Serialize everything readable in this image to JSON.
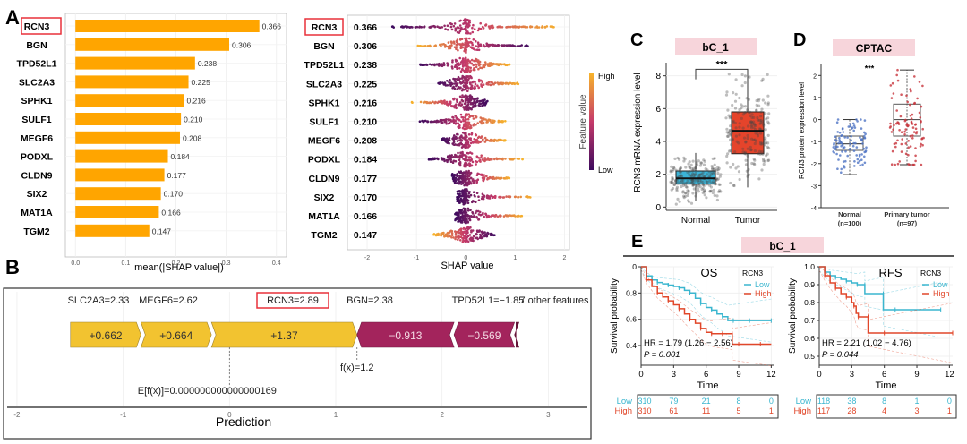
{
  "panel_labels": {
    "A": "A",
    "B": "B",
    "C": "C",
    "D": "D",
    "E": "E"
  },
  "colors": {
    "bar_orange": "#FFA500",
    "highlight_red": "#E8303A",
    "positive_force": "#F2C330",
    "negative_force": "#A3245C",
    "normal_blue": "#3BB3D6",
    "tumor_red": "#E5442B",
    "cptac_normal": "#4F74C4",
    "cptac_tumor": "#C8343C",
    "km_low": "#3AB6CF",
    "km_high": "#E1472A",
    "header_pink": "#F7D5DB",
    "colorbar_low": "#3D0A5E",
    "colorbar_mid": "#C53A6A",
    "colorbar_high": "#F7B32B"
  },
  "chart_data": [
    {
      "id": "A-bar",
      "type": "bar",
      "orientation": "horizontal",
      "categories": [
        "RCN3",
        "BGN",
        "TPD52L1",
        "SLC2A3",
        "SPHK1",
        "SULF1",
        "MEGF6",
        "PODXL",
        "CLDN9",
        "SIX2",
        "MAT1A",
        "TGM2"
      ],
      "values": [
        0.366,
        0.306,
        0.238,
        0.225,
        0.216,
        0.21,
        0.208,
        0.184,
        0.177,
        0.17,
        0.166,
        0.147
      ],
      "value_labels": [
        "0.366",
        "0.306",
        "0.238",
        "0.225",
        "0.216",
        "0.210",
        "0.208",
        "0.184",
        "0.177",
        "0.170",
        "0.166",
        "0.147"
      ],
      "highlighted": "RCN3",
      "xlabel": "mean(|SHAP value|)",
      "xlim": [
        -0.02,
        0.42
      ],
      "xticks": [
        0.0,
        0.1,
        0.2,
        0.3,
        0.4
      ],
      "xtick_labels": [
        "0.0",
        "0.1",
        "0.2",
        "0.3",
        "0.4"
      ],
      "grid": true
    },
    {
      "id": "A-beeswarm",
      "type": "scatter",
      "subtype": "beeswarm",
      "categories": [
        "RCN3",
        "BGN",
        "TPD52L1",
        "SLC2A3",
        "SPHK1",
        "SULF1",
        "MEGF6",
        "PODXL",
        "CLDN9",
        "SIX2",
        "MAT1A",
        "TGM2"
      ],
      "mean_abs_labels": [
        "0.366",
        "0.306",
        "0.238",
        "0.225",
        "0.216",
        "0.210",
        "0.208",
        "0.184",
        "0.177",
        "0.170",
        "0.166",
        "0.147"
      ],
      "highlighted": "RCN3",
      "shap_range": [
        [
          -1.5,
          1.9
        ],
        [
          -1.0,
          1.3
        ],
        [
          -0.95,
          0.9
        ],
        [
          -0.6,
          1.1
        ],
        [
          -1.1,
          0.45
        ],
        [
          -0.95,
          0.8
        ],
        [
          -0.5,
          0.8
        ],
        [
          -0.75,
          1.15
        ],
        [
          -0.28,
          0.9
        ],
        [
          -0.18,
          1.35
        ],
        [
          -0.22,
          1.15
        ],
        [
          -0.65,
          0.6
        ]
      ],
      "low_value_side": [
        "left",
        "right",
        "left",
        "left",
        "right",
        "left",
        "left",
        "left",
        "left",
        "left",
        "left",
        "right"
      ],
      "xlabel": "SHAP value",
      "xlim": [
        -2.4,
        2.1
      ],
      "xticks": [
        -2,
        -1,
        0,
        1,
        2
      ],
      "xtick_labels": [
        "-2",
        "-1",
        "0",
        "1",
        "2"
      ],
      "colorbar": {
        "title": "Feature value",
        "high_label": "High",
        "low_label": "Low"
      }
    },
    {
      "id": "B-force",
      "type": "bar",
      "subtype": "force-plot",
      "features": [
        {
          "name": "SLC2A3=2.33",
          "contribution": 0.662,
          "label": "+0.662"
        },
        {
          "name": "MEGF6=2.62",
          "contribution": 0.664,
          "label": "+0.664"
        },
        {
          "name": "RCN3=2.89",
          "contribution": 1.37,
          "label": "+1.37",
          "highlighted": true
        },
        {
          "name": "BGN=2.38",
          "contribution": -0.913,
          "label": "−0.913"
        },
        {
          "name": "TPD52L1=−1.85",
          "contribution": -0.569,
          "label": "−0.569"
        },
        {
          "name": "7 other features",
          "contribution": -0.014,
          "label": ""
        }
      ],
      "base_value_label": "E[f(x)]=0.000000000000000169",
      "base_value": 0.0,
      "fx_label": "f(x)=1.2",
      "fx": 1.2,
      "xlabel": "Prediction",
      "xlim": [
        -2.05,
        3.3
      ],
      "xticks": [
        -2,
        -1,
        0,
        1,
        2,
        3
      ],
      "xtick_labels": [
        "-2",
        "-1",
        "0",
        "1",
        "2",
        "3"
      ]
    },
    {
      "id": "C-box",
      "type": "scatter",
      "subtype": "boxplot",
      "title": "bC_1",
      "categories": [
        "Normal",
        "Tumor"
      ],
      "ylabel": "RCN3 mRNA expression level",
      "ylim": [
        -0.2,
        8.8
      ],
      "yticks": [
        0,
        2,
        4,
        6,
        8
      ],
      "ytick_labels": [
        "0",
        "2",
        "4",
        "6",
        "8"
      ],
      "significance": "***",
      "boxes": [
        {
          "name": "Normal",
          "q1": 1.4,
          "median": 1.75,
          "q3": 2.2,
          "whisker_low": 0.4,
          "whisker_high": 3.3
        },
        {
          "name": "Tumor",
          "q1": 3.25,
          "median": 4.65,
          "q3": 5.8,
          "whisker_low": 1.2,
          "whisker_high": 8.1
        }
      ]
    },
    {
      "id": "D-box",
      "type": "scatter",
      "subtype": "boxplot",
      "title": "CPTAC",
      "categories": [
        "Normal\n(n=100)",
        "Primary tumor\n(n=97)"
      ],
      "category_lines": [
        [
          "Normal",
          "(n=100)"
        ],
        [
          "Primary tumor",
          "(n=97)"
        ]
      ],
      "ylabel": "RCN3 protein expression level",
      "ylim": [
        -4,
        2.5
      ],
      "yticks": [
        -4,
        -3,
        -2,
        -1,
        0,
        1,
        2
      ],
      "ytick_labels": [
        "-4",
        "-3",
        "-2",
        "-1",
        "0",
        "1",
        "2"
      ],
      "significance": "***",
      "boxes": [
        {
          "name": "Normal",
          "q1": -1.4,
          "median": -1.1,
          "q3": -0.75,
          "whisker_low": -2.5,
          "whisker_high": 0.0
        },
        {
          "name": "Primary tumor",
          "q1": -0.75,
          "median": 0.0,
          "q3": 0.7,
          "whisker_low": -2.05,
          "whisker_high": 2.25
        }
      ]
    },
    {
      "id": "E-OS",
      "type": "line",
      "subtype": "kaplan-meier",
      "group_title": "bC_1",
      "title": "OS",
      "xlabel": "Time",
      "ylabel": "Survival probability",
      "xlim": [
        0,
        12.3
      ],
      "ylim": [
        0.25,
        1.0
      ],
      "xticks": [
        0,
        3,
        6,
        9,
        12
      ],
      "yticks": [
        0.4,
        0.6,
        0.8,
        1.0
      ],
      "ytick_labels": [
        "0.4",
        "0.6",
        "0.8",
        ".0"
      ],
      "legend": {
        "title": "RCN3",
        "entries": [
          "Low",
          "High"
        ],
        "position": "top-right"
      },
      "annotation": [
        "HR = 1.79 (1.26 − 2.56)",
        "P = 0.001"
      ],
      "series": [
        {
          "name": "Low",
          "x": [
            0,
            0.5,
            1,
            1.5,
            2,
            2.5,
            3,
            3.5,
            4,
            4.5,
            5,
            5.5,
            6,
            6.5,
            7,
            7.5,
            8,
            8.5,
            9,
            10,
            11,
            12
          ],
          "y": [
            1.0,
            0.93,
            0.9,
            0.88,
            0.87,
            0.86,
            0.85,
            0.84,
            0.82,
            0.8,
            0.76,
            0.72,
            0.69,
            0.67,
            0.64,
            0.62,
            0.59,
            0.59,
            0.59,
            0.59,
            0.59,
            0.59
          ]
        },
        {
          "name": "High",
          "x": [
            0,
            0.5,
            1,
            1.5,
            2,
            2.5,
            3,
            3.5,
            4,
            4.5,
            5,
            5.5,
            6,
            6.5,
            7,
            7.5,
            8,
            8.4,
            8.4,
            9,
            10,
            11,
            12
          ],
          "y": [
            1.0,
            0.9,
            0.85,
            0.8,
            0.77,
            0.74,
            0.71,
            0.68,
            0.64,
            0.6,
            0.57,
            0.53,
            0.5,
            0.49,
            0.49,
            0.49,
            0.49,
            0.49,
            0.41,
            0.41,
            0.41,
            0.41,
            0.41
          ]
        }
      ],
      "risk_table": {
        "rows": [
          {
            "name": "Low",
            "values": [
              "310",
              "79",
              "21",
              "8",
              "0"
            ]
          },
          {
            "name": "High",
            "values": [
              "310",
              "61",
              "11",
              "5",
              "1"
            ]
          }
        ]
      }
    },
    {
      "id": "E-RFS",
      "type": "line",
      "subtype": "kaplan-meier",
      "group_title": "bC_1",
      "title": "RFS",
      "xlabel": "Time",
      "ylabel": "Survival probability",
      "xlim": [
        0,
        12.3
      ],
      "ylim": [
        0.45,
        1.0
      ],
      "xticks": [
        0,
        3,
        6,
        9,
        12
      ],
      "yticks": [
        0.5,
        0.6,
        0.7,
        0.8,
        0.9,
        1.0
      ],
      "ytick_labels": [
        "0.5",
        "0.6",
        "0.7",
        "0.8",
        "0.9",
        "1.0"
      ],
      "legend": {
        "title": "RCN3",
        "entries": [
          "Low",
          "High"
        ],
        "position": "top-right"
      },
      "annotation": [
        "HR = 2.21 (1.02 − 4.76)",
        "P = 0.044"
      ],
      "series": [
        {
          "name": "Low",
          "x": [
            0,
            0.5,
            1,
            1.5,
            2,
            2.5,
            3,
            3.5,
            4,
            4.2,
            4.2,
            5.9,
            5.9,
            7,
            9,
            11.2
          ],
          "y": [
            1.0,
            0.97,
            0.95,
            0.94,
            0.93,
            0.92,
            0.91,
            0.9,
            0.9,
            0.9,
            0.85,
            0.85,
            0.76,
            0.76,
            0.76,
            0.76
          ]
        },
        {
          "name": "High",
          "x": [
            0,
            0.5,
            1,
            1.5,
            2,
            2.5,
            3,
            3.2,
            3.4,
            3.6,
            4,
            4.5,
            4.5,
            6,
            9,
            12.3
          ],
          "y": [
            1.0,
            0.95,
            0.91,
            0.88,
            0.85,
            0.83,
            0.8,
            0.78,
            0.74,
            0.72,
            0.72,
            0.72,
            0.63,
            0.63,
            0.63,
            0.63
          ]
        }
      ],
      "risk_table": {
        "rows": [
          {
            "name": "Low",
            "values": [
              "118",
              "38",
              "8",
              "1",
              "0"
            ]
          },
          {
            "name": "High",
            "values": [
              "117",
              "28",
              "4",
              "3",
              "1"
            ]
          }
        ]
      }
    }
  ]
}
